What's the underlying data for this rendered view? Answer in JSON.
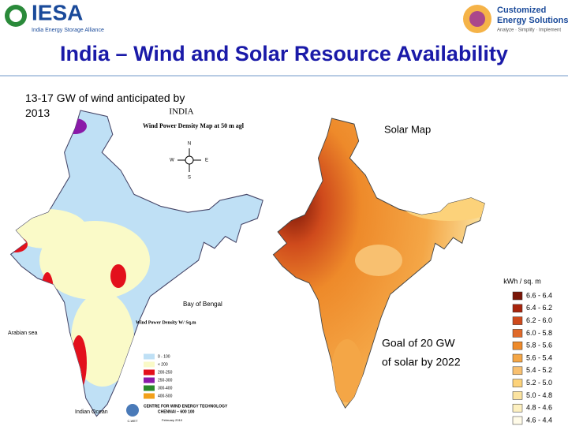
{
  "header": {
    "left_logo": "IESA",
    "left_tagline": "India Energy Storage Alliance",
    "right_logo_line1": "Customized",
    "right_logo_line2": "Energy Solutions",
    "right_tagline": "Analyze · Simplify · Implement"
  },
  "title": "India – Wind and Solar Resource Availability",
  "wind_note": "13-17 GW of wind anticipated by 2013",
  "solar_note": "Goal of 20 GW of solar by 2022",
  "wind_map": {
    "country": "INDIA",
    "title": "Wind Power Density  Map at 50 m agl",
    "compass": [
      "N",
      "E",
      "S",
      "W"
    ],
    "bay": "Bay of Bengal",
    "sea": "Arabian sea",
    "ocean": "Indian Ocean",
    "legend_title": "Wind Power Density W/ Sq.m",
    "legend": [
      {
        "label": "0 - 100",
        "color": "#bfe0f5"
      },
      {
        "label": "< 200",
        "color": "#fafac8"
      },
      {
        "label": "200-250",
        "color": "#e3101c"
      },
      {
        "label": "250-300",
        "color": "#8a1aa8"
      },
      {
        "label": "300-400",
        "color": "#2a8a2a"
      },
      {
        "label": "400-500",
        "color": "#f2a01a"
      }
    ],
    "credit": [
      "CENTRE FOR WIND ENERGY TECHNOLOGY",
      "CHENNAI – 600 100",
      "February 2010"
    ],
    "credit_logo": "C-WET"
  },
  "solar_map": {
    "title": "Solar Map",
    "legend_title": "kWh / sq. m",
    "legend": [
      {
        "label": "6.6 - 6.4",
        "color": "#7a1608"
      },
      {
        "label": "6.4 - 6.2",
        "color": "#a8240c"
      },
      {
        "label": "6.2 - 6.0",
        "color": "#cf4a1c"
      },
      {
        "label": "6.0 - 5.8",
        "color": "#e06a2a"
      },
      {
        "label": "5.8 - 5.6",
        "color": "#ee8a2a"
      },
      {
        "label": "5.6 - 5.4",
        "color": "#f4a646"
      },
      {
        "label": "5.4 - 5.2",
        "color": "#f8c070"
      },
      {
        "label": "5.2 - 5.0",
        "color": "#fcd27a"
      },
      {
        "label": "5.0 - 4.8",
        "color": "#fbe3a0"
      },
      {
        "label": "4.8 - 4.6",
        "color": "#fdf0c0"
      },
      {
        "label": "4.6 - 4.4",
        "color": "#fffbe8"
      }
    ]
  }
}
